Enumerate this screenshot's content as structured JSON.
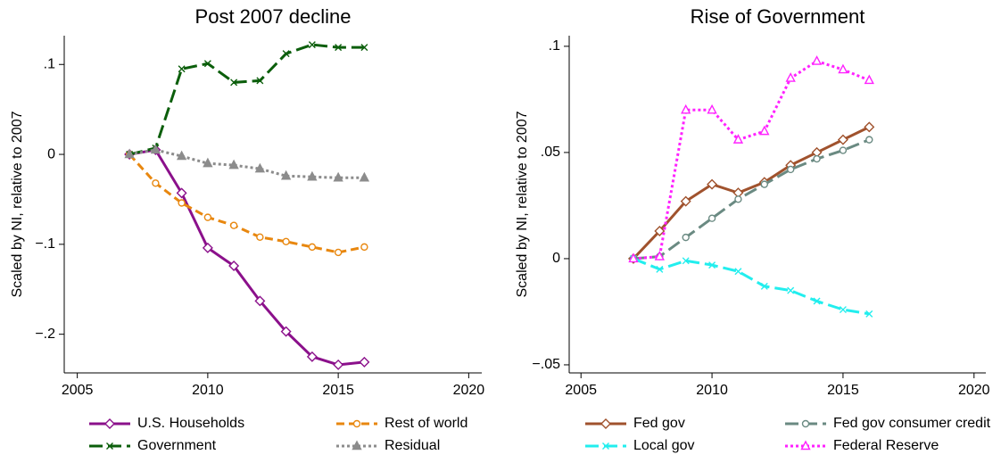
{
  "chart_data": [
    {
      "type": "line",
      "title": "Post 2007 decline",
      "y_label": "Scaled by NI, relative to 2007",
      "x": [
        2007,
        2008,
        2009,
        2010,
        2011,
        2012,
        2013,
        2014,
        2015,
        2016
      ],
      "xlim": [
        2004.5,
        2020.5
      ],
      "xticks": [
        2005,
        2010,
        2015,
        2020
      ],
      "ylim": [
        -0.243,
        0.132
      ],
      "yticks": [
        {
          "value": -0.2,
          "label": "−.2"
        },
        {
          "value": -0.1,
          "label": "−.1"
        },
        0,
        {
          "value": 0.1,
          "label": ".1"
        }
      ],
      "series": [
        {
          "name": "U.S. Households",
          "color": "#8b108b",
          "dash": "solid",
          "marker": "diamond",
          "values": [
            0,
            0.005,
            -0.043,
            -0.104,
            -0.124,
            -0.163,
            -0.197,
            -0.225,
            -0.234,
            -0.231
          ]
        },
        {
          "name": "Rest of world",
          "color": "#e8870f",
          "dash": "dash",
          "marker": "circle",
          "values": [
            0,
            -0.032,
            -0.054,
            -0.07,
            -0.079,
            -0.092,
            -0.097,
            -0.103,
            -0.109,
            -0.103
          ]
        },
        {
          "name": "Government",
          "color": "#0b5e0b",
          "dash": "longdash",
          "marker": "x",
          "values": [
            0,
            0.007,
            0.095,
            0.101,
            0.08,
            0.082,
            0.112,
            0.122,
            0.119,
            0.119
          ]
        },
        {
          "name": "Residual",
          "color": "#8c8c8c",
          "dash": "dot",
          "marker": "triangle",
          "values": [
            0,
            0.005,
            -0.002,
            -0.01,
            -0.012,
            -0.016,
            -0.024,
            -0.025,
            -0.026,
            -0.026
          ]
        }
      ]
    },
    {
      "type": "line",
      "title": "Rise of Government",
      "y_label": "Scaled by NI, relative to 2007",
      "x": [
        2007,
        2008,
        2009,
        2010,
        2011,
        2012,
        2013,
        2014,
        2015,
        2016
      ],
      "xlim": [
        2004.55,
        2020.45
      ],
      "xticks": [
        2005,
        2010,
        2015,
        2020
      ],
      "ylim": [
        -0.0538,
        0.105
      ],
      "yticks": [
        {
          "value": -0.05,
          "label": "−.05"
        },
        0,
        {
          "value": 0.05,
          "label": ".05"
        },
        {
          "value": 0.1,
          "label": ".1"
        }
      ],
      "series": [
        {
          "name": "Fed gov",
          "color": "#a0522d",
          "dash": "solid",
          "marker": "diamond",
          "values": [
            0,
            0.013,
            0.027,
            0.035,
            0.031,
            0.036,
            0.044,
            0.05,
            0.056,
            0.062
          ]
        },
        {
          "name": "Fed gov consumer credit",
          "color": "#6a8a82",
          "dash": "longdash",
          "marker": "circle",
          "values": [
            0,
            0.001,
            0.01,
            0.019,
            0.028,
            0.035,
            0.042,
            0.047,
            0.051,
            0.056
          ]
        },
        {
          "name": "Local gov",
          "color": "#22eeee",
          "dash": "longdash",
          "marker": "x",
          "values": [
            0,
            -0.005,
            -0.001,
            -0.003,
            -0.006,
            -0.013,
            -0.015,
            -0.02,
            -0.024,
            -0.026
          ]
        },
        {
          "name": "Federal Reserve",
          "color": "#ff22ff",
          "dash": "dot",
          "marker": "triangle",
          "values": [
            0,
            0.001,
            0.07,
            0.07,
            0.056,
            0.06,
            0.085,
            0.093,
            0.089,
            0.084
          ]
        }
      ]
    }
  ]
}
